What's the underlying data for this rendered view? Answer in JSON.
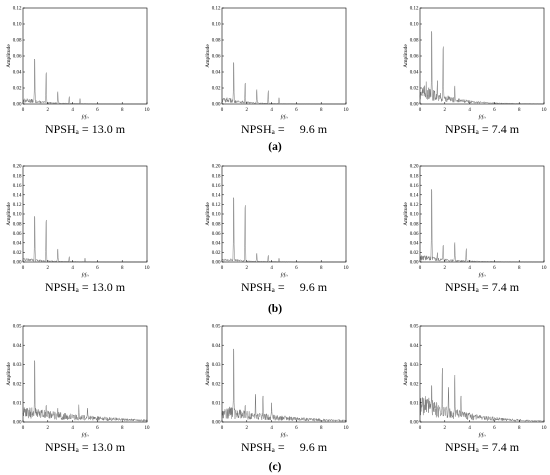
{
  "chart_data": [
    {
      "type": "line",
      "row": "a",
      "caption": "NPSHₐ = 13.0 m",
      "xlabel": "f/fₙ",
      "ylabel": "Amplitude",
      "xlim": [
        0,
        10
      ],
      "ylim": [
        0,
        0.12
      ],
      "xticks": [
        "0",
        "2",
        "4",
        "6",
        "8",
        "10"
      ],
      "yticks": [
        "0.00",
        "0.02",
        "0.04",
        "0.06",
        "0.08",
        "0.10",
        "0.12"
      ],
      "grid": false,
      "noise": 0.006,
      "decay": 0.6,
      "peaks": [
        {
          "x": 0.94,
          "y": 0.065
        },
        {
          "x": 1.87,
          "y": 0.045
        },
        {
          "x": 2.8,
          "y": 0.017
        },
        {
          "x": 3.73,
          "y": 0.01
        },
        {
          "x": 4.6,
          "y": 0.007
        }
      ]
    },
    {
      "type": "line",
      "row": "a",
      "caption": "NPSHₐ =     9.6 m",
      "xlabel": "f/fₙ",
      "ylabel": "Amplitude",
      "xlim": [
        0,
        10
      ],
      "ylim": [
        0,
        0.12
      ],
      "xticks": [
        "0",
        "2",
        "4",
        "6",
        "8",
        "10"
      ],
      "yticks": [
        "0.00",
        "0.02",
        "0.04",
        "0.06",
        "0.08",
        "0.10",
        "0.12"
      ],
      "grid": false,
      "noise": 0.007,
      "decay": 0.6,
      "peaks": [
        {
          "x": 0.94,
          "y": 0.06
        },
        {
          "x": 1.87,
          "y": 0.03
        },
        {
          "x": 2.8,
          "y": 0.02
        },
        {
          "x": 3.73,
          "y": 0.018
        },
        {
          "x": 4.6,
          "y": 0.008
        }
      ]
    },
    {
      "type": "line",
      "row": "a",
      "caption": "NPSHₐ = 7.4 m",
      "xlabel": "f/fₙ",
      "ylabel": "Amplitude",
      "xlim": [
        0,
        10
      ],
      "ylim": [
        0,
        0.12
      ],
      "xticks": [
        "0",
        "2",
        "4",
        "6",
        "8",
        "10"
      ],
      "yticks": [
        "0.00",
        "0.02",
        "0.04",
        "0.06",
        "0.08",
        "0.10",
        "0.12"
      ],
      "grid": false,
      "noise": 0.02,
      "decay": 0.45,
      "peaks": [
        {
          "x": 0.94,
          "y": 0.105
        },
        {
          "x": 1.87,
          "y": 0.082
        },
        {
          "x": 1.4,
          "y": 0.03
        },
        {
          "x": 2.8,
          "y": 0.025
        },
        {
          "x": 0.5,
          "y": 0.028
        }
      ]
    },
    {
      "type": "line",
      "row": "b",
      "caption": "NPSHₐ = 13.0 m",
      "xlabel": "f/fₙ",
      "ylabel": "Amplitude",
      "xlim": [
        0,
        10
      ],
      "ylim": [
        0,
        0.2
      ],
      "xticks": [
        "0",
        "2",
        "4",
        "6",
        "8",
        "10"
      ],
      "yticks": [
        "0.00",
        "0.02",
        "0.04",
        "0.06",
        "0.08",
        "0.10",
        "0.12",
        "0.14",
        "0.16",
        "0.18",
        "0.20"
      ],
      "grid": false,
      "noise": 0.007,
      "decay": 0.55,
      "peaks": [
        {
          "x": 0.94,
          "y": 0.11
        },
        {
          "x": 1.87,
          "y": 0.1
        },
        {
          "x": 2.8,
          "y": 0.03
        },
        {
          "x": 3.73,
          "y": 0.012
        },
        {
          "x": 5.0,
          "y": 0.008
        }
      ]
    },
    {
      "type": "line",
      "row": "b",
      "caption": "NPSHₐ =     9.6 m",
      "xlabel": "f/fₙ",
      "ylabel": "Amplitude",
      "xlim": [
        0,
        10
      ],
      "ylim": [
        0,
        0.2
      ],
      "xticks": [
        "0",
        "2",
        "4",
        "6",
        "8",
        "10"
      ],
      "yticks": [
        "0.00",
        "0.02",
        "0.04",
        "0.06",
        "0.08",
        "0.10",
        "0.12",
        "0.14",
        "0.16",
        "0.18",
        "0.20"
      ],
      "grid": false,
      "noise": 0.007,
      "decay": 0.55,
      "peaks": [
        {
          "x": 0.94,
          "y": 0.155
        },
        {
          "x": 1.87,
          "y": 0.135
        },
        {
          "x": 2.8,
          "y": 0.02
        },
        {
          "x": 3.73,
          "y": 0.015
        },
        {
          "x": 4.6,
          "y": 0.008
        }
      ]
    },
    {
      "type": "line",
      "row": "b",
      "caption": "NPSHₐ = 7.4 m",
      "xlabel": "f/fₙ",
      "ylabel": "Amplitude",
      "xlim": [
        0,
        10
      ],
      "ylim": [
        0,
        0.2
      ],
      "xticks": [
        "0",
        "2",
        "4",
        "6",
        "8",
        "10"
      ],
      "yticks": [
        "0.00",
        "0.02",
        "0.04",
        "0.06",
        "0.08",
        "0.10",
        "0.12",
        "0.14",
        "0.16",
        "0.18",
        "0.20"
      ],
      "grid": false,
      "noise": 0.012,
      "decay": 0.45,
      "peaks": [
        {
          "x": 0.94,
          "y": 0.175
        },
        {
          "x": 1.87,
          "y": 0.04
        },
        {
          "x": 2.8,
          "y": 0.045
        },
        {
          "x": 3.73,
          "y": 0.03
        },
        {
          "x": 1.4,
          "y": 0.02
        }
      ]
    },
    {
      "type": "line",
      "row": "c",
      "caption": "NPSHₐ = 13.0 m",
      "xlabel": "f/fₙ",
      "ylabel": "Amplitude",
      "xlim": [
        0,
        10
      ],
      "ylim": [
        0,
        0.05
      ],
      "xticks": [
        "0",
        "2",
        "4",
        "6",
        "8",
        "10"
      ],
      "yticks": [
        "0.00",
        "0.01",
        "0.02",
        "0.03",
        "0.04",
        "0.05"
      ],
      "grid": false,
      "noise": 0.007,
      "decay": 0.18,
      "peaks": [
        {
          "x": 0.94,
          "y": 0.037
        },
        {
          "x": 1.87,
          "y": 0.01
        },
        {
          "x": 4.5,
          "y": 0.009
        },
        {
          "x": 5.2,
          "y": 0.008
        },
        {
          "x": 2.8,
          "y": 0.008
        }
      ]
    },
    {
      "type": "line",
      "row": "c",
      "caption": "NPSHₐ =     9.6 m",
      "xlabel": "f/fₙ",
      "ylabel": "Amplitude",
      "xlim": [
        0,
        10
      ],
      "ylim": [
        0,
        0.05
      ],
      "xticks": [
        "0",
        "2",
        "4",
        "6",
        "8",
        "10"
      ],
      "yticks": [
        "0.00",
        "0.01",
        "0.02",
        "0.03",
        "0.04",
        "0.05"
      ],
      "grid": false,
      "noise": 0.007,
      "decay": 0.2,
      "peaks": [
        {
          "x": 0.94,
          "y": 0.044
        },
        {
          "x": 2.7,
          "y": 0.016
        },
        {
          "x": 3.3,
          "y": 0.015
        },
        {
          "x": 1.87,
          "y": 0.01
        },
        {
          "x": 4.0,
          "y": 0.01
        }
      ]
    },
    {
      "type": "line",
      "row": "c",
      "caption": "NPSHₐ = 7.4 m",
      "xlabel": "f/fₙ",
      "ylabel": "Amplitude",
      "xlim": [
        0,
        10
      ],
      "ylim": [
        0,
        0.05
      ],
      "xticks": [
        "0",
        "2",
        "4",
        "6",
        "8",
        "10"
      ],
      "yticks": [
        "0.00",
        "0.01",
        "0.02",
        "0.03",
        "0.04",
        "0.05"
      ],
      "grid": false,
      "noise": 0.012,
      "decay": 0.3,
      "peaks": [
        {
          "x": 1.8,
          "y": 0.031
        },
        {
          "x": 2.8,
          "y": 0.027
        },
        {
          "x": 0.94,
          "y": 0.022
        },
        {
          "x": 2.3,
          "y": 0.02
        },
        {
          "x": 3.3,
          "y": 0.015
        }
      ]
    }
  ],
  "row_labels": [
    "(a)",
    "(b)",
    "(c)"
  ]
}
